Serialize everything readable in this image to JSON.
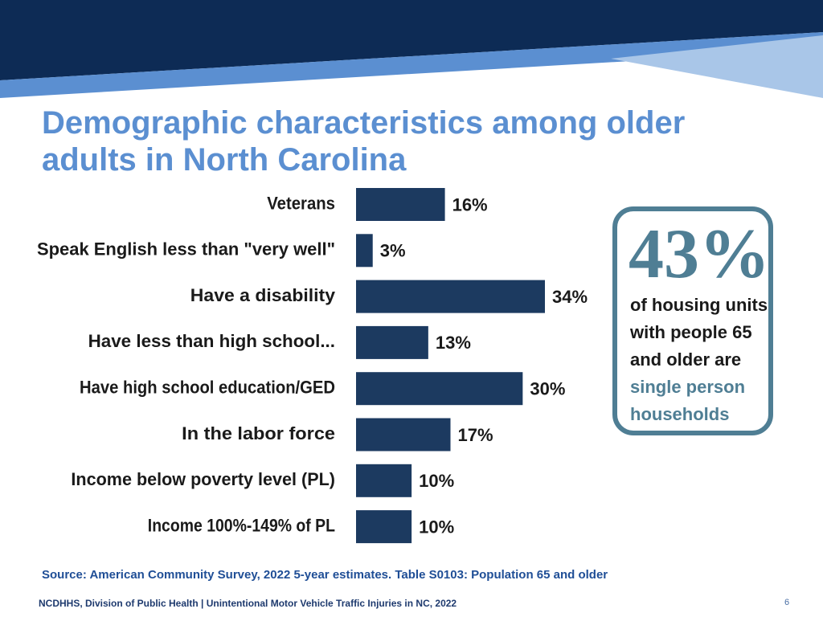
{
  "title": {
    "line1": "Demographic characteristics among older",
    "line2": "adults in North Carolina"
  },
  "chart_data": {
    "type": "bar",
    "orientation": "horizontal",
    "categories": [
      "Veterans",
      "Speak English less than \"very well\"",
      "Have a disability",
      "Have less than high school...",
      "Have high school education/GED",
      "In the labor force",
      "Income below poverty level (PL)",
      "Income 100%-149% of PL"
    ],
    "values": [
      16,
      3,
      34,
      13,
      30,
      17,
      10,
      10
    ],
    "value_labels": [
      "16%",
      "3%",
      "34%",
      "13%",
      "30%",
      "17%",
      "10%",
      "10%"
    ],
    "xlim": [
      0,
      34
    ],
    "bar_color": "#1c3a60",
    "grid": false
  },
  "callout": {
    "big_value": "43%",
    "text": "of housing units with people 65 and older are",
    "highlight": "single person households",
    "accent_color": "#4f7e94"
  },
  "source": "Source: American Community Survey, 2022 5-year estimates. Table S0103: Population 65 and older",
  "footer": {
    "text": "NCDHHS, Division of Public Health | Unintentional Motor Vehicle Traffic Injuries in NC, 2022",
    "page": "6"
  },
  "colors": {
    "banner_dark": "#0d2b55",
    "banner_mid": "#5b8fd1",
    "banner_light": "#a9c6e8",
    "title": "#5b8fd1"
  }
}
